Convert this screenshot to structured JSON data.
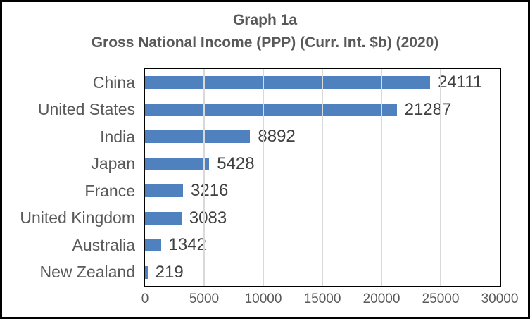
{
  "chart": {
    "title_line1": "Graph 1a",
    "title_line2": "Gross National Income (PPP) (Curr. Int. $b) (2020)"
  },
  "chart_data": {
    "type": "bar",
    "orientation": "horizontal",
    "title": "Graph 1a",
    "subtitle": "Gross National Income (PPP) (Curr. Int. $b) (2020)",
    "categories": [
      "China",
      "United States",
      "India",
      "Japan",
      "France",
      "United Kingdom",
      "Australia",
      "New Zealand"
    ],
    "values": [
      24111,
      21287,
      8892,
      5428,
      3216,
      3083,
      1342,
      219
    ],
    "data_labels": [
      24111,
      21287,
      8892,
      5428,
      3216,
      3083,
      1342,
      219
    ],
    "xlabel": "",
    "ylabel": "",
    "xlim": [
      0,
      30000
    ],
    "xticks": [
      0,
      5000,
      10000,
      15000,
      20000,
      25000,
      30000
    ],
    "grid": true,
    "legend": false,
    "bar_color": "#4e81bd",
    "gridline_color": "#d9d9d9",
    "title_color": "#595959",
    "label_color": "#595959",
    "value_label_color": "#404040",
    "plot_border_color": "#000000"
  }
}
